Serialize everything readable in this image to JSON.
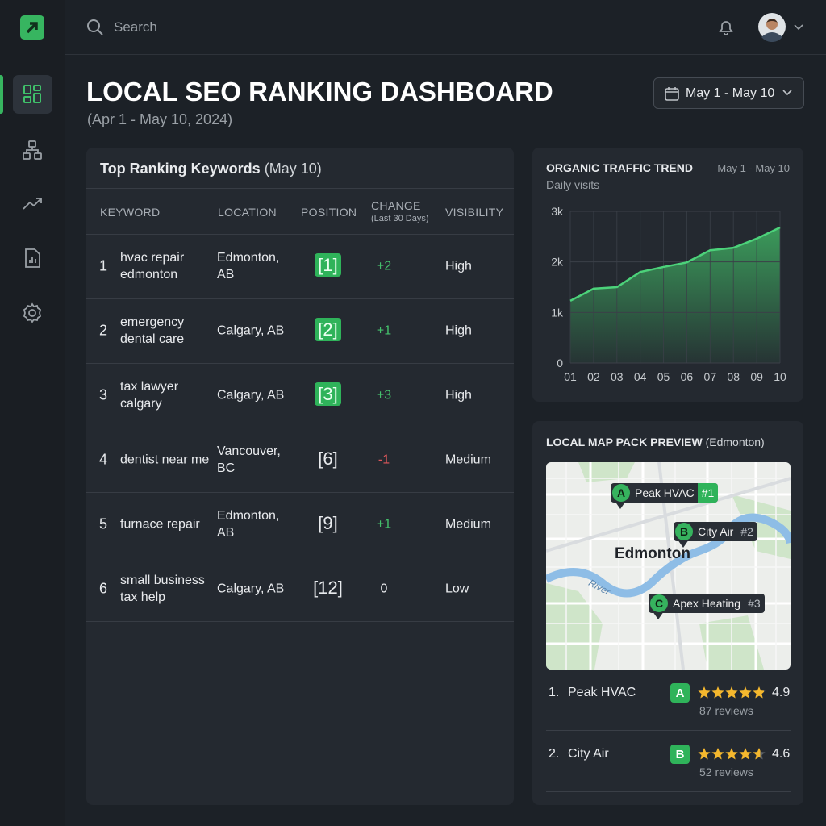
{
  "search_placeholder": "Search",
  "header": {
    "title": "LOCAL SEO RANKING DASHBOARD",
    "subtitle": "(Apr 1 - May 10, 2024)",
    "date_range": "May 1 - May 10"
  },
  "keywords": {
    "title": "Top Ranking Keywords",
    "title_note": "(May 10)",
    "columns": {
      "keyword": "KEYWORD",
      "location": "LOCATION",
      "position": "POSITION",
      "change": "CHANGE",
      "change_note": "(Last 30 Days)",
      "visibility": "VISIBILITY"
    },
    "rows": [
      {
        "rank": "1",
        "keyword": "hvac repair edmonton",
        "location": "Edmonton, AB",
        "position": "[1]",
        "highlight": true,
        "change": "+2",
        "direction": "up",
        "visibility": "High"
      },
      {
        "rank": "2",
        "keyword": "emergency dental care",
        "location": "Calgary, AB",
        "position": "[2]",
        "highlight": true,
        "change": "+1",
        "direction": "up",
        "visibility": "High"
      },
      {
        "rank": "3",
        "keyword": "tax lawyer calgary",
        "location": "Calgary, AB",
        "position": "[3]",
        "highlight": true,
        "change": "+3",
        "direction": "up",
        "visibility": "High"
      },
      {
        "rank": "4",
        "keyword": "dentist near me",
        "location": "Vancouver, BC",
        "position": "[6]",
        "highlight": false,
        "change": "-1",
        "direction": "down",
        "visibility": "Medium"
      },
      {
        "rank": "5",
        "keyword": "furnace repair",
        "location": "Edmonton, AB",
        "position": "[9]",
        "highlight": false,
        "change": "+1",
        "direction": "up",
        "visibility": "Medium"
      },
      {
        "rank": "6",
        "keyword": "small business tax help",
        "location": "Calgary, AB",
        "position": "[12]",
        "highlight": false,
        "change": "0",
        "direction": "none",
        "visibility": "Low"
      }
    ]
  },
  "chart_data": {
    "type": "area",
    "title": "ORGANIC TRAFFIC TREND",
    "date_range": "May 1 - May 10",
    "subtitle": "Daily visits",
    "categories": [
      "01",
      "02",
      "03",
      "04",
      "05",
      "06",
      "07",
      "08",
      "09",
      "10"
    ],
    "values": [
      1230,
      1470,
      1500,
      1800,
      1900,
      1990,
      2230,
      2280,
      2460,
      2680
    ],
    "ylim": [
      0,
      3000
    ],
    "yticks": [
      {
        "value": 0,
        "label": "0"
      },
      {
        "value": 1000,
        "label": "1k"
      },
      {
        "value": 2000,
        "label": "2k"
      },
      {
        "value": 3000,
        "label": "3k"
      }
    ],
    "grid": true,
    "color": "#3fae62"
  },
  "map": {
    "title": "LOCAL MAP PACK PREVIEW",
    "title_note": "(Edmonton)",
    "city": "Edmonton",
    "river": "River",
    "pins": [
      {
        "letter": "A",
        "name": "Peak HVAC",
        "rank": "#1",
        "highlight": true
      },
      {
        "letter": "B",
        "name": "City Air",
        "rank": "#2",
        "highlight": false
      },
      {
        "letter": "C",
        "name": "Apex Heating",
        "rank": "#3",
        "highlight": false
      }
    ],
    "listings": [
      {
        "rank": "1.",
        "name": "Peak HVAC",
        "letter": "A",
        "rating": 4.9,
        "reviews": "87 reviews"
      },
      {
        "rank": "2.",
        "name": "City Air",
        "letter": "B",
        "rating": 4.6,
        "reviews": "52 reviews"
      }
    ]
  }
}
